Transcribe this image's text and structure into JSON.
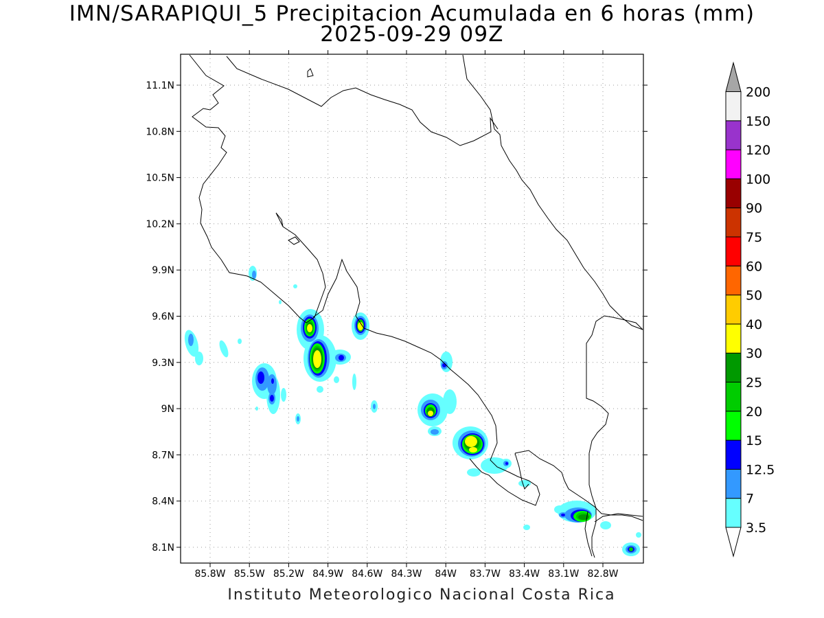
{
  "title": {
    "line1": "IMN/SARAPIQUI_5 Precipitacion Acumulada en 6 horas (mm)",
    "line2": "2025-09-29 09Z"
  },
  "axes": {
    "lat_labels": [
      "11.1N",
      "10.8N",
      "10.5N",
      "10.2N",
      "9.9N",
      "9.6N",
      "9.3N",
      "9N",
      "8.7N",
      "8.4N",
      "8.1N"
    ],
    "lon_labels": [
      "85.8W",
      "85.5W",
      "85.2W",
      "84.9W",
      "84.6W",
      "84.3W",
      "84W",
      "83.7W",
      "83.4W",
      "83.1W",
      "82.8W"
    ]
  },
  "colorbar": {
    "levels": [
      {
        "label": "3.5",
        "color": "#66ffff"
      },
      {
        "label": "7",
        "color": "#3399ff"
      },
      {
        "label": "12.5",
        "color": "#0000ff"
      },
      {
        "label": "15",
        "color": "#00ff00"
      },
      {
        "label": "20",
        "color": "#00cc00"
      },
      {
        "label": "25",
        "color": "#009900"
      },
      {
        "label": "30",
        "color": "#ffff00"
      },
      {
        "label": "40",
        "color": "#ffcc00"
      },
      {
        "label": "50",
        "color": "#ff6600"
      },
      {
        "label": "60",
        "color": "#ff0000"
      },
      {
        "label": "75",
        "color": "#cc3300"
      },
      {
        "label": "90",
        "color": "#990000"
      },
      {
        "label": "100",
        "color": "#ff00ff"
      },
      {
        "label": "120",
        "color": "#9933cc"
      },
      {
        "label": "150",
        "color": "#f2f2f2"
      },
      {
        "label": "200",
        "color": "#a6a6a6"
      }
    ]
  },
  "credit": "Instituto Meteorologico Nacional Costa Rica"
}
